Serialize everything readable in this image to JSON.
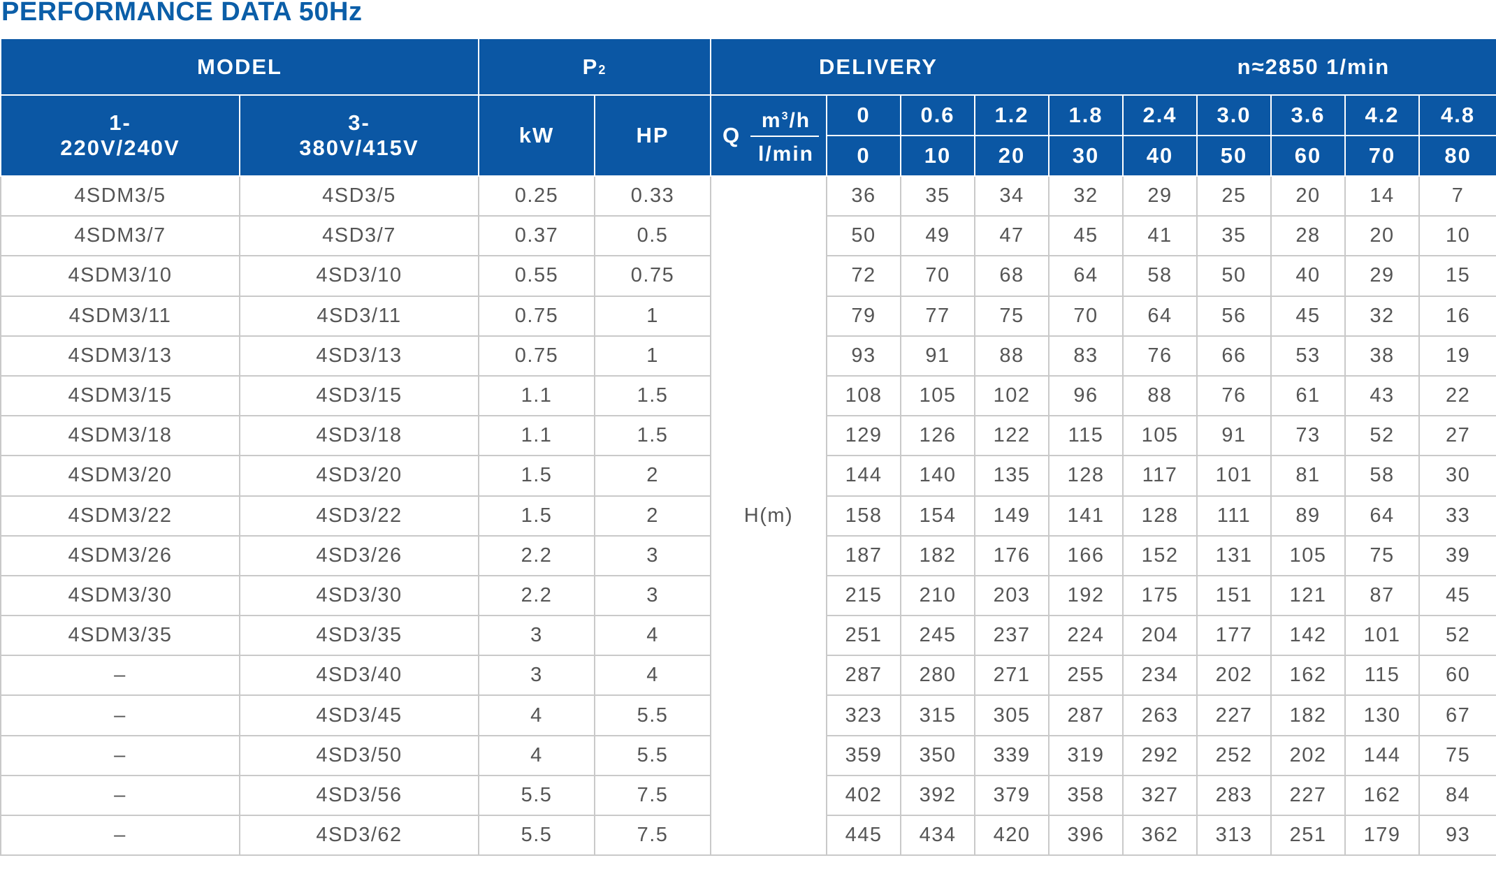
{
  "title": "PERFORMANCE DATA 50Hz",
  "header": {
    "model": "MODEL",
    "p2_main": "P",
    "p2_sub": "2",
    "delivery": "DELIVERY",
    "speed": "n≈2850  1/min",
    "single_phase": "1-\n220V/240V",
    "three_phase": "3-\n380V/415V",
    "kw": "kW",
    "hp": "HP",
    "q": "Q",
    "unit_m3h_base": "m",
    "unit_m3h_sup": "3",
    "unit_m3h_tail": "/h",
    "unit_lmin": "l/min",
    "head_label": "H(m)"
  },
  "flow_m3h": [
    "0",
    "0.6",
    "1.2",
    "1.8",
    "2.4",
    "3.0",
    "3.6",
    "4.2",
    "4.8"
  ],
  "flow_lmin": [
    "0",
    "10",
    "20",
    "30",
    "40",
    "50",
    "60",
    "70",
    "80"
  ],
  "rows": [
    {
      "m1": "4SDM3/5",
      "m3": "4SD3/5",
      "kw": "0.25",
      "hp": "0.33",
      "h": [
        "36",
        "35",
        "34",
        "32",
        "29",
        "25",
        "20",
        "14",
        "7"
      ]
    },
    {
      "m1": "4SDM3/7",
      "m3": "4SD3/7",
      "kw": "0.37",
      "hp": "0.5",
      "h": [
        "50",
        "49",
        "47",
        "45",
        "41",
        "35",
        "28",
        "20",
        "10"
      ]
    },
    {
      "m1": "4SDM3/10",
      "m3": "4SD3/10",
      "kw": "0.55",
      "hp": "0.75",
      "h": [
        "72",
        "70",
        "68",
        "64",
        "58",
        "50",
        "40",
        "29",
        "15"
      ]
    },
    {
      "m1": "4SDM3/11",
      "m3": "4SD3/11",
      "kw": "0.75",
      "hp": "1",
      "h": [
        "79",
        "77",
        "75",
        "70",
        "64",
        "56",
        "45",
        "32",
        "16"
      ]
    },
    {
      "m1": "4SDM3/13",
      "m3": "4SD3/13",
      "kw": "0.75",
      "hp": "1",
      "h": [
        "93",
        "91",
        "88",
        "83",
        "76",
        "66",
        "53",
        "38",
        "19"
      ]
    },
    {
      "m1": "4SDM3/15",
      "m3": "4SD3/15",
      "kw": "1.1",
      "hp": "1.5",
      "h": [
        "108",
        "105",
        "102",
        "96",
        "88",
        "76",
        "61",
        "43",
        "22"
      ]
    },
    {
      "m1": "4SDM3/18",
      "m3": "4SD3/18",
      "kw": "1.1",
      "hp": "1.5",
      "h": [
        "129",
        "126",
        "122",
        "115",
        "105",
        "91",
        "73",
        "52",
        "27"
      ]
    },
    {
      "m1": "4SDM3/20",
      "m3": "4SD3/20",
      "kw": "1.5",
      "hp": "2",
      "h": [
        "144",
        "140",
        "135",
        "128",
        "117",
        "101",
        "81",
        "58",
        "30"
      ]
    },
    {
      "m1": "4SDM3/22",
      "m3": "4SD3/22",
      "kw": "1.5",
      "hp": "2",
      "h": [
        "158",
        "154",
        "149",
        "141",
        "128",
        "111",
        "89",
        "64",
        "33"
      ]
    },
    {
      "m1": "4SDM3/26",
      "m3": "4SD3/26",
      "kw": "2.2",
      "hp": "3",
      "h": [
        "187",
        "182",
        "176",
        "166",
        "152",
        "131",
        "105",
        "75",
        "39"
      ]
    },
    {
      "m1": "4SDM3/30",
      "m3": "4SD3/30",
      "kw": "2.2",
      "hp": "3",
      "h": [
        "215",
        "210",
        "203",
        "192",
        "175",
        "151",
        "121",
        "87",
        "45"
      ]
    },
    {
      "m1": "4SDM3/35",
      "m3": "4SD3/35",
      "kw": "3",
      "hp": "4",
      "h": [
        "251",
        "245",
        "237",
        "224",
        "204",
        "177",
        "142",
        "101",
        "52"
      ]
    },
    {
      "m1": "–",
      "m3": "4SD3/40",
      "kw": "3",
      "hp": "4",
      "h": [
        "287",
        "280",
        "271",
        "255",
        "234",
        "202",
        "162",
        "115",
        "60"
      ]
    },
    {
      "m1": "–",
      "m3": "4SD3/45",
      "kw": "4",
      "hp": "5.5",
      "h": [
        "323",
        "315",
        "305",
        "287",
        "263",
        "227",
        "182",
        "130",
        "67"
      ]
    },
    {
      "m1": "–",
      "m3": "4SD3/50",
      "kw": "4",
      "hp": "5.5",
      "h": [
        "359",
        "350",
        "339",
        "319",
        "292",
        "252",
        "202",
        "144",
        "75"
      ]
    },
    {
      "m1": "–",
      "m3": "4SD3/56",
      "kw": "5.5",
      "hp": "7.5",
      "h": [
        "402",
        "392",
        "379",
        "358",
        "327",
        "283",
        "227",
        "162",
        "84"
      ]
    },
    {
      "m1": "–",
      "m3": "4SD3/62",
      "kw": "5.5",
      "hp": "7.5",
      "h": [
        "445",
        "434",
        "420",
        "396",
        "362",
        "313",
        "251",
        "179",
        "93"
      ]
    }
  ],
  "colors": {
    "header_blue": "#0b57a4",
    "title_blue": "#0b5ea8",
    "grid": "#c9c9c9",
    "text": "#555555"
  }
}
